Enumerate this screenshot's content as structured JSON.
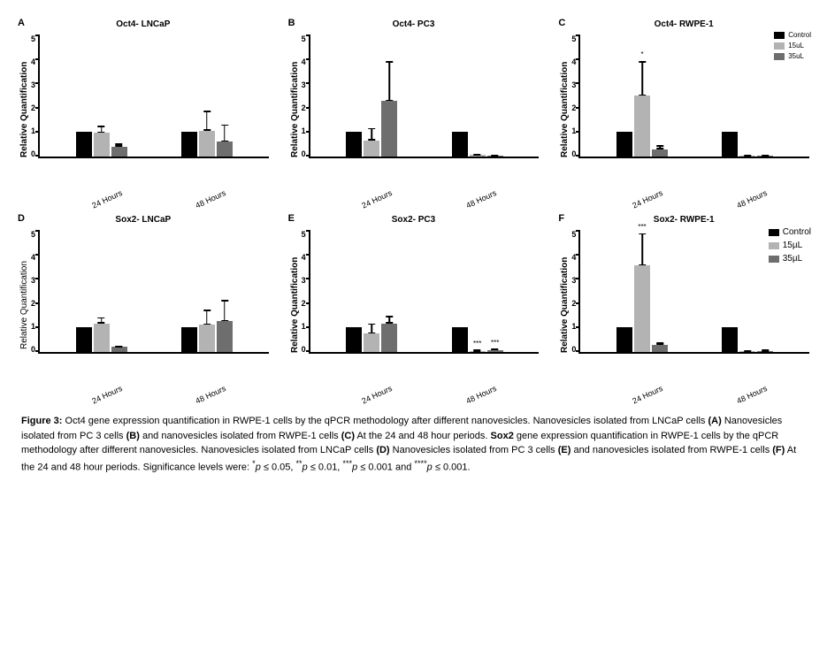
{
  "colors": {
    "control": "#000000",
    "dose15": "#b3b3b3",
    "dose35": "#6e6e6e",
    "axis": "#000000",
    "bg": "#ffffff"
  },
  "legend": {
    "items": [
      {
        "label": "Control",
        "color": "#000000"
      },
      {
        "label": "15uL",
        "color": "#b3b3b3"
      },
      {
        "label": "35uL",
        "color": "#6e6e6e"
      }
    ],
    "alt_label15": "15µL",
    "alt_label35": "35µL"
  },
  "axis": {
    "ylabel": "Relative Quantification",
    "ymax": 5,
    "yticks": [
      5,
      4,
      3,
      2,
      1,
      0
    ],
    "xcats": [
      "24 Hours",
      "48 Hours"
    ]
  },
  "panels": [
    {
      "id": "A",
      "title": "Oct4- LNCaP",
      "show_legend": false,
      "bold_ylabel": true,
      "groups": [
        {
          "bars": [
            {
              "v": 1.0,
              "e": 0.0,
              "c": "control"
            },
            {
              "v": 0.95,
              "e": 0.3,
              "c": "dose15"
            },
            {
              "v": 0.4,
              "e": 0.12,
              "c": "dose35"
            }
          ]
        },
        {
          "bars": [
            {
              "v": 1.0,
              "e": 0.0,
              "c": "control"
            },
            {
              "v": 1.05,
              "e": 0.8,
              "c": "dose15"
            },
            {
              "v": 0.6,
              "e": 0.7,
              "c": "dose35"
            }
          ]
        }
      ]
    },
    {
      "id": "B",
      "title": "Oct4- PC3",
      "show_legend": false,
      "bold_ylabel": true,
      "groups": [
        {
          "bars": [
            {
              "v": 1.0,
              "e": 0.0,
              "c": "control"
            },
            {
              "v": 0.65,
              "e": 0.5,
              "c": "dose15"
            },
            {
              "v": 2.25,
              "e": 1.6,
              "c": "dose35"
            }
          ]
        },
        {
          "bars": [
            {
              "v": 1.0,
              "e": 0.0,
              "c": "control"
            },
            {
              "v": 0.06,
              "e": 0.03,
              "c": "dose15"
            },
            {
              "v": 0.02,
              "e": 0.01,
              "c": "dose35"
            }
          ]
        }
      ]
    },
    {
      "id": "C",
      "title": "Oct4- RWPE-1",
      "show_legend": true,
      "legend_small": true,
      "bold_ylabel": true,
      "groups": [
        {
          "bars": [
            {
              "v": 1.0,
              "e": 0.0,
              "c": "control"
            },
            {
              "v": 2.45,
              "e": 1.4,
              "c": "dose15",
              "sig": "*"
            },
            {
              "v": 0.3,
              "e": 0.15,
              "c": "dose35"
            }
          ]
        },
        {
          "bars": [
            {
              "v": 1.0,
              "e": 0.0,
              "c": "control"
            },
            {
              "v": 0.02,
              "e": 0.01,
              "c": "dose15"
            },
            {
              "v": 0.02,
              "e": 0.01,
              "c": "dose35"
            }
          ]
        }
      ]
    },
    {
      "id": "D",
      "title": "Sox2- LNCaP",
      "show_legend": false,
      "bold_ylabel": false,
      "groups": [
        {
          "bars": [
            {
              "v": 1.0,
              "e": 0.0,
              "c": "control"
            },
            {
              "v": 1.15,
              "e": 0.25,
              "c": "dose15"
            },
            {
              "v": 0.2,
              "e": 0.05,
              "c": "dose35"
            }
          ]
        },
        {
          "bars": [
            {
              "v": 1.0,
              "e": 0.0,
              "c": "control"
            },
            {
              "v": 1.1,
              "e": 0.6,
              "c": "dose15"
            },
            {
              "v": 1.25,
              "e": 0.85,
              "c": "dose35"
            }
          ]
        }
      ]
    },
    {
      "id": "E",
      "title": "Sox2- PC3",
      "show_legend": false,
      "bold_ylabel": true,
      "groups": [
        {
          "bars": [
            {
              "v": 1.0,
              "e": 0.0,
              "c": "control"
            },
            {
              "v": 0.75,
              "e": 0.4,
              "c": "dose15"
            },
            {
              "v": 1.15,
              "e": 0.3,
              "c": "dose35"
            }
          ]
        },
        {
          "bars": [
            {
              "v": 1.0,
              "e": 0.0,
              "c": "control"
            },
            {
              "v": 0.04,
              "e": 0.02,
              "c": "dose15",
              "sig": "***"
            },
            {
              "v": 0.08,
              "e": 0.03,
              "c": "dose35",
              "sig": "***"
            }
          ]
        }
      ]
    },
    {
      "id": "F",
      "title": "Sox2- RWPE-1",
      "show_legend": true,
      "legend_small": false,
      "bold_ylabel": true,
      "groups": [
        {
          "bars": [
            {
              "v": 1.0,
              "e": 0.0,
              "c": "control"
            },
            {
              "v": 3.5,
              "e": 1.3,
              "c": "dose15",
              "sig": "***"
            },
            {
              "v": 0.3,
              "e": 0.08,
              "c": "dose35"
            }
          ]
        },
        {
          "bars": [
            {
              "v": 1.0,
              "e": 0.0,
              "c": "control"
            },
            {
              "v": 0.03,
              "e": 0.01,
              "c": "dose15"
            },
            {
              "v": 0.04,
              "e": 0.02,
              "c": "dose35"
            }
          ]
        }
      ]
    }
  ],
  "caption": {
    "lead": "Figure 3:",
    "body1": " Oct4 gene expression quantification in RWPE-1 cells by the qPCR methodology after different nanovesicles. Nanovesicles isolated from LNCaP cells ",
    "A": "(A)",
    "body2": " Nanovesicles isolated from PC 3 cells ",
    "B": "(B)",
    "body3": " and nanovesicles isolated from RWPE-1 cells ",
    "C": "(C)",
    "body4": " At the 24 and 48 hour periods. ",
    "sox2": "Sox2",
    "body5": " gene expression quantification in RWPE-1 cells by the qPCR methodology after different nanovesicles. Nanovesicles isolated from LNCaP cells ",
    "D": "(D)",
    "body6": " Nanovesicles isolated from PC 3 cells ",
    "E": "(E)",
    "body7": " and nanovesicles isolated from RWPE-1 cells ",
    "F": "(F)",
    "body8": " At the 24 and 48 hour periods. Significance levels were: ",
    "p1a": "*",
    "p1b": "p",
    "p1c": " ≤ 0.05, ",
    "p2a": "**",
    "p2b": "p",
    "p2c": " ≤ 0.01, ",
    "p3a": "***",
    "p3b": "p",
    "p3c": " ≤ 0.001 and ",
    "p4a": "****",
    "p4b": "p",
    "p4c": " ≤ 0.001."
  }
}
